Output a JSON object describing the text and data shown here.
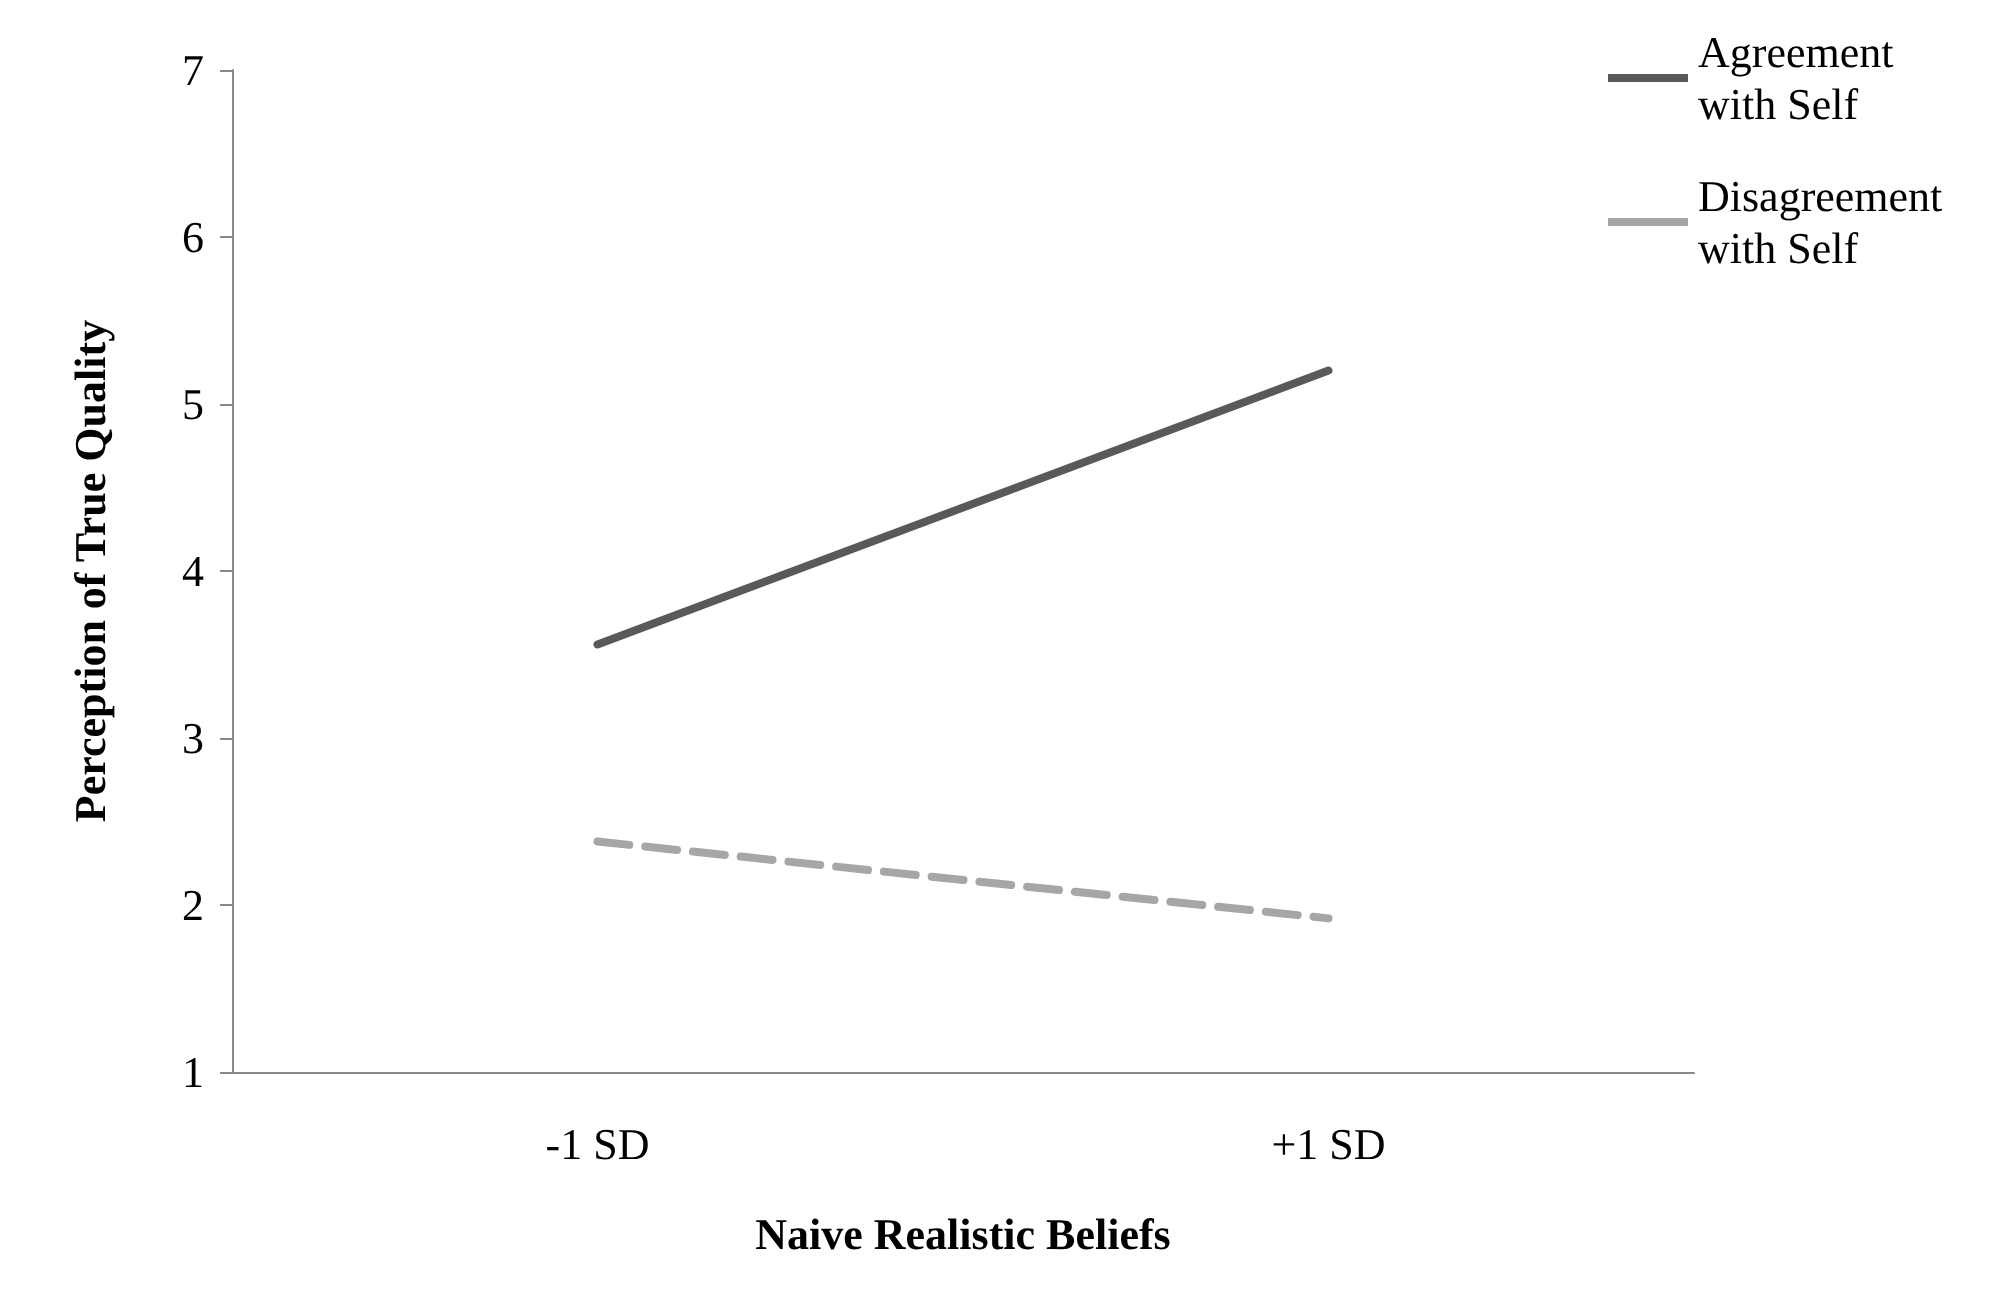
{
  "chart_data": {
    "type": "line",
    "xlabel": "Naive Realistic Beliefs",
    "ylabel": "Perception of True Quality",
    "categories": [
      "-1 SD",
      "+1 SD"
    ],
    "series": [
      {
        "name": "Agreement with Self",
        "color": "#595959",
        "values": [
          3.56,
          5.2
        ],
        "line_style": "solid"
      },
      {
        "name": "Disagreement with Self",
        "color": "#a6a6a6",
        "values": [
          2.38,
          1.92
        ],
        "line_style": "dashed"
      }
    ],
    "ylim": [
      1,
      7
    ],
    "yticks": [
      1,
      2,
      3,
      4,
      5,
      6,
      7
    ],
    "grid": false,
    "legend": "top right",
    "marker": "none"
  }
}
